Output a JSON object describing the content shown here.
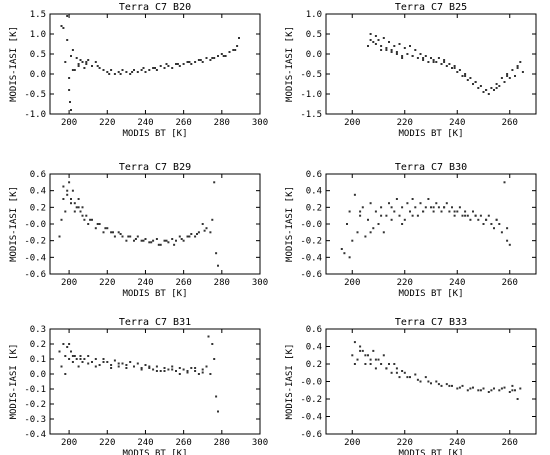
{
  "colors": {
    "frame": "#000000",
    "points": "#333333",
    "background": "#ffffff"
  },
  "chart_data": [
    {
      "type": "scatter",
      "title": "Terra C7 B20",
      "xlabel": "MODIS BT [K]",
      "ylabel": "MODIS-IASI [K]",
      "xlim": [
        190,
        300
      ],
      "ylim": [
        -1.0,
        1.5
      ],
      "xticks": [
        200,
        220,
        240,
        260,
        280,
        300
      ],
      "yticks": [
        -1.0,
        -0.5,
        0.0,
        0.5,
        1.0,
        1.5
      ],
      "xtick_labels": [
        "200",
        "220",
        "240",
        "260",
        "280",
        "300"
      ],
      "ytick_labels": [
        "-1.0",
        "-0.5",
        "0.0",
        "0.5",
        "1.0",
        "1.5"
      ],
      "x": [
        196,
        197,
        198,
        199,
        200,
        200.5,
        201,
        202,
        203,
        204,
        205,
        206,
        207,
        208,
        209,
        210,
        212,
        214,
        216,
        218,
        220,
        222,
        224,
        226,
        228,
        230,
        232,
        234,
        236,
        238,
        240,
        242,
        244,
        246,
        248,
        250,
        252,
        254,
        256,
        258,
        260,
        262,
        264,
        266,
        268,
        270,
        272,
        274,
        276,
        278,
        280,
        282,
        284,
        286,
        288,
        289,
        199,
        200,
        201,
        202,
        205,
        209,
        215,
        221,
        227,
        233,
        239,
        245,
        251,
        257,
        263,
        269,
        275,
        281,
        287
      ],
      "y": [
        1.2,
        1.15,
        0.3,
        1.45,
        -0.1,
        -0.7,
        -0.9,
        0.6,
        0.1,
        0.4,
        0.2,
        0.35,
        0.3,
        0.15,
        0.25,
        0.35,
        0.2,
        0.3,
        0.15,
        0.1,
        0.05,
        0.1,
        0.0,
        0.05,
        0.1,
        0.05,
        0.0,
        0.1,
        0.05,
        0.1,
        0.05,
        0.1,
        0.15,
        0.1,
        0.2,
        0.15,
        0.2,
        0.15,
        0.25,
        0.2,
        0.25,
        0.3,
        0.25,
        0.3,
        0.35,
        0.3,
        0.4,
        0.35,
        0.4,
        0.45,
        0.5,
        0.45,
        0.55,
        0.6,
        0.7,
        0.9,
        0.85,
        -0.4,
        0.45,
        0.1,
        0.25,
        0.3,
        0.2,
        0.0,
        0.0,
        0.05,
        0.15,
        0.15,
        0.25,
        0.25,
        0.3,
        0.35,
        0.4,
        0.45,
        0.6
      ]
    },
    {
      "type": "scatter",
      "title": "Terra C7 B25",
      "xlabel": "MODIS BT [K]",
      "ylabel": "MODIS-IASI [K]",
      "xlim": [
        190,
        270
      ],
      "ylim": [
        -1.5,
        1.0
      ],
      "xticks": [
        200,
        220,
        240,
        260
      ],
      "yticks": [
        -1.5,
        -1.0,
        -0.5,
        0.0,
        0.5,
        1.0
      ],
      "xtick_labels": [
        "200",
        "220",
        "240",
        "260"
      ],
      "ytick_labels": [
        "-1.5",
        "-1.0",
        "-0.5",
        "0.0",
        "0.5",
        "1.0"
      ],
      "x": [
        206,
        207,
        208,
        209,
        210,
        211,
        212,
        213,
        214,
        215,
        216,
        217,
        218,
        219,
        220,
        221,
        222,
        223,
        224,
        225,
        226,
        227,
        228,
        229,
        230,
        231,
        232,
        233,
        234,
        235,
        236,
        237,
        238,
        239,
        240,
        241,
        242,
        243,
        244,
        245,
        246,
        247,
        248,
        249,
        250,
        251,
        252,
        253,
        254,
        255,
        256,
        257,
        258,
        259,
        260,
        261,
        262,
        263,
        264,
        265,
        207,
        209,
        211,
        213,
        215,
        217,
        219,
        223,
        227,
        231,
        235,
        239,
        243,
        247,
        251,
        255,
        259,
        263
      ],
      "y": [
        0.2,
        0.5,
        0.3,
        0.45,
        0.35,
        0.1,
        0.4,
        0.15,
        0.3,
        0.1,
        0.2,
        0.05,
        0.25,
        -0.05,
        0.15,
        0.0,
        0.2,
        -0.05,
        0.1,
        -0.1,
        0.0,
        -0.15,
        -0.05,
        -0.2,
        -0.1,
        -0.15,
        -0.2,
        -0.1,
        -0.25,
        -0.15,
        -0.3,
        -0.25,
        -0.35,
        -0.3,
        -0.45,
        -0.4,
        -0.55,
        -0.5,
        -0.65,
        -0.6,
        -0.75,
        -0.7,
        -0.85,
        -0.8,
        -0.95,
        -0.9,
        -1.0,
        -0.85,
        -0.9,
        -0.75,
        -0.8,
        -0.6,
        -0.7,
        -0.5,
        -0.6,
        -0.4,
        -0.55,
        -0.3,
        -0.2,
        -0.45,
        0.35,
        0.25,
        0.2,
        0.1,
        0.05,
        0.0,
        -0.1,
        -0.05,
        -0.1,
        -0.2,
        -0.2,
        -0.35,
        -0.55,
        -0.7,
        -0.9,
        -0.85,
        -0.55,
        -0.35
      ]
    },
    {
      "type": "scatter",
      "title": "Terra C7 B29",
      "xlabel": "MODIS BT [K]",
      "ylabel": "MODIS-IASI [K]",
      "xlim": [
        190,
        300
      ],
      "ylim": [
        -0.6,
        0.6
      ],
      "xticks": [
        200,
        220,
        240,
        260,
        280,
        300
      ],
      "yticks": [
        -0.6,
        -0.4,
        -0.2,
        0.0,
        0.2,
        0.4,
        0.6
      ],
      "xtick_labels": [
        "200",
        "220",
        "240",
        "260",
        "280",
        "300"
      ],
      "ytick_labels": [
        "-0.6",
        "-0.4",
        "-0.2",
        "-0.0",
        "0.2",
        "0.4",
        "0.6"
      ],
      "x": [
        195,
        196,
        197,
        198,
        199,
        200,
        201,
        202,
        203,
        204,
        205,
        206,
        207,
        208,
        209,
        210,
        212,
        214,
        216,
        218,
        220,
        222,
        224,
        226,
        228,
        230,
        232,
        234,
        236,
        238,
        240,
        242,
        244,
        246,
        248,
        250,
        252,
        254,
        256,
        258,
        260,
        262,
        264,
        266,
        268,
        270,
        272,
        274,
        275,
        276,
        277,
        278,
        197,
        199,
        201,
        203,
        205,
        207,
        211,
        215,
        219,
        223,
        227,
        231,
        235,
        239,
        243,
        247,
        251,
        255,
        259,
        263,
        267,
        271
      ],
      "y": [
        -0.15,
        0.05,
        0.45,
        0.15,
        0.35,
        0.5,
        0.3,
        0.4,
        0.25,
        0.2,
        0.3,
        0.15,
        0.2,
        0.05,
        0.1,
        0.0,
        0.05,
        -0.05,
        0.0,
        -0.1,
        -0.05,
        -0.1,
        -0.15,
        -0.1,
        -0.15,
        -0.2,
        -0.15,
        -0.2,
        -0.15,
        -0.2,
        -0.18,
        -0.22,
        -0.2,
        -0.18,
        -0.25,
        -0.2,
        -0.22,
        -0.18,
        -0.2,
        -0.15,
        -0.2,
        -0.15,
        -0.12,
        -0.15,
        -0.1,
        0.0,
        -0.05,
        -0.1,
        0.05,
        0.5,
        -0.35,
        -0.5,
        0.3,
        0.4,
        0.25,
        0.15,
        0.2,
        0.1,
        0.05,
        0.0,
        -0.05,
        -0.1,
        -0.12,
        -0.15,
        -0.18,
        -0.2,
        -0.22,
        -0.25,
        -0.2,
        -0.25,
        -0.18,
        -0.15,
        -0.12,
        -0.08
      ]
    },
    {
      "type": "scatter",
      "title": "Terra C7 B30",
      "xlabel": "MODIS BT [K]",
      "ylabel": "MODIS-IASI [K]",
      "xlim": [
        190,
        270
      ],
      "ylim": [
        -0.6,
        0.6
      ],
      "xticks": [
        200,
        220,
        240,
        260
      ],
      "yticks": [
        -0.6,
        -0.4,
        -0.2,
        0.0,
        0.2,
        0.4,
        0.6
      ],
      "xtick_labels": [
        "200",
        "220",
        "240",
        "260"
      ],
      "ytick_labels": [
        "-0.6",
        "-0.4",
        "-0.2",
        "-0.0",
        "0.2",
        "0.4",
        "0.6"
      ],
      "x": [
        196,
        197,
        198,
        199,
        200,
        201,
        202,
        203,
        204,
        205,
        206,
        207,
        208,
        209,
        210,
        211,
        212,
        213,
        214,
        215,
        216,
        217,
        218,
        219,
        220,
        221,
        222,
        223,
        224,
        225,
        226,
        227,
        228,
        229,
        230,
        231,
        232,
        233,
        234,
        235,
        236,
        237,
        238,
        239,
        240,
        241,
        242,
        243,
        244,
        245,
        246,
        247,
        248,
        249,
        250,
        251,
        252,
        253,
        254,
        255,
        256,
        257,
        258,
        259,
        260,
        199,
        203,
        207,
        211,
        215,
        219,
        223,
        227,
        231,
        235,
        239,
        243,
        247,
        251,
        255,
        259
      ],
      "y": [
        -0.3,
        -0.35,
        0.0,
        0.15,
        -0.2,
        0.35,
        -0.1,
        0.1,
        0.2,
        -0.15,
        0.05,
        0.25,
        -0.05,
        0.15,
        0.0,
        0.2,
        -0.1,
        0.1,
        0.25,
        0.05,
        0.15,
        0.3,
        0.1,
        0.2,
        0.05,
        0.25,
        0.15,
        0.3,
        0.2,
        0.1,
        0.25,
        0.15,
        0.2,
        0.3,
        0.2,
        0.15,
        0.25,
        0.2,
        0.15,
        0.2,
        0.25,
        0.15,
        0.2,
        0.1,
        0.15,
        0.2,
        0.1,
        0.15,
        0.1,
        0.05,
        0.15,
        0.1,
        0.05,
        0.1,
        0.0,
        0.05,
        0.1,
        0.0,
        -0.05,
        0.05,
        0.0,
        -0.1,
        0.5,
        -0.2,
        -0.25,
        -0.4,
        0.15,
        -0.1,
        0.1,
        0.2,
        0.0,
        0.1,
        0.15,
        0.2,
        0.2,
        0.15,
        0.1,
        0.1,
        0.05,
        0.05,
        -0.05
      ]
    },
    {
      "type": "scatter",
      "title": "Terra C7 B31",
      "xlabel": "MODIS BT [K]",
      "ylabel": "MODIS-IASI [K]",
      "xlim": [
        190,
        300
      ],
      "ylim": [
        -0.4,
        0.3
      ],
      "xticks": [
        200,
        220,
        240,
        260,
        280,
        300
      ],
      "yticks": [
        -0.4,
        -0.3,
        -0.2,
        -0.1,
        0.0,
        0.1,
        0.2,
        0.3
      ],
      "xtick_labels": [
        "200",
        "220",
        "240",
        "260",
        "280",
        "300"
      ],
      "ytick_labels": [
        "-0.4",
        "-0.3",
        "-0.2",
        "-0.1",
        "0.0",
        "0.1",
        "0.2",
        "0.3"
      ],
      "x": [
        195,
        196,
        197,
        198,
        199,
        200,
        201,
        202,
        203,
        204,
        205,
        206,
        207,
        208,
        210,
        212,
        214,
        216,
        218,
        220,
        222,
        224,
        226,
        228,
        230,
        232,
        234,
        236,
        238,
        240,
        242,
        244,
        246,
        248,
        250,
        252,
        254,
        256,
        258,
        260,
        262,
        264,
        266,
        268,
        270,
        272,
        273,
        274,
        275,
        276,
        277,
        278,
        198,
        200,
        202,
        206,
        210,
        214,
        218,
        222,
        226,
        230,
        234,
        238,
        242,
        246,
        250,
        254,
        258,
        262,
        266,
        270
      ],
      "y": [
        0.15,
        0.05,
        0.2,
        0.12,
        0.18,
        0.1,
        0.15,
        0.08,
        0.12,
        0.1,
        0.05,
        0.12,
        0.08,
        0.1,
        0.12,
        0.08,
        0.1,
        0.06,
        0.1,
        0.08,
        0.06,
        0.09,
        0.05,
        0.07,
        0.06,
        0.08,
        0.05,
        0.07,
        0.04,
        0.06,
        0.05,
        0.03,
        0.05,
        0.02,
        0.04,
        0.03,
        0.05,
        0.02,
        0.04,
        0.03,
        0.01,
        0.04,
        0.02,
        0.0,
        0.03,
        0.05,
        0.25,
        0.0,
        0.2,
        0.1,
        -0.15,
        -0.25,
        0.0,
        0.2,
        0.12,
        0.1,
        0.07,
        0.05,
        0.08,
        0.04,
        0.07,
        0.04,
        0.05,
        0.03,
        0.04,
        0.02,
        0.02,
        0.03,
        0.0,
        0.02,
        0.04,
        0.01
      ]
    },
    {
      "type": "scatter",
      "title": "Terra C7 B33",
      "xlabel": "MODIS BT [K]",
      "ylabel": "MODIS-IASI [K]",
      "xlim": [
        190,
        270
      ],
      "ylim": [
        -0.6,
        0.6
      ],
      "xticks": [
        200,
        220,
        240,
        260
      ],
      "yticks": [
        -0.6,
        -0.4,
        -0.2,
        0.0,
        0.2,
        0.4,
        0.6
      ],
      "xtick_labels": [
        "200",
        "220",
        "240",
        "260"
      ],
      "ytick_labels": [
        "-0.6",
        "-0.4",
        "-0.2",
        "-0.0",
        "0.2",
        "0.4",
        "0.6"
      ],
      "x": [
        200,
        201,
        202,
        203,
        204,
        205,
        206,
        207,
        208,
        209,
        210,
        211,
        212,
        213,
        214,
        215,
        216,
        217,
        218,
        219,
        220,
        222,
        224,
        226,
        228,
        230,
        232,
        234,
        236,
        238,
        240,
        242,
        244,
        246,
        248,
        250,
        252,
        254,
        256,
        258,
        260,
        261,
        262,
        263,
        264,
        201,
        203,
        205,
        207,
        209,
        213,
        217,
        221,
        225,
        229,
        233,
        237,
        241,
        245,
        249,
        253,
        257,
        261
      ],
      "y": [
        0.3,
        0.45,
        0.25,
        0.4,
        0.35,
        0.2,
        0.3,
        0.25,
        0.35,
        0.15,
        0.25,
        0.2,
        0.3,
        0.15,
        0.2,
        0.1,
        0.2,
        0.15,
        0.05,
        0.12,
        0.1,
        0.05,
        0.08,
        0.0,
        0.05,
        -0.02,
        0.0,
        -0.05,
        -0.03,
        -0.05,
        -0.08,
        -0.05,
        -0.1,
        -0.07,
        -0.1,
        -0.08,
        -0.12,
        -0.08,
        -0.1,
        -0.07,
        -0.12,
        -0.05,
        -0.1,
        -0.2,
        -0.08,
        0.2,
        0.35,
        0.3,
        0.2,
        0.25,
        0.15,
        0.1,
        0.05,
        0.02,
        0.0,
        -0.03,
        -0.05,
        -0.07,
        -0.08,
        -0.1,
        -0.1,
        -0.08,
        -0.1
      ]
    }
  ]
}
